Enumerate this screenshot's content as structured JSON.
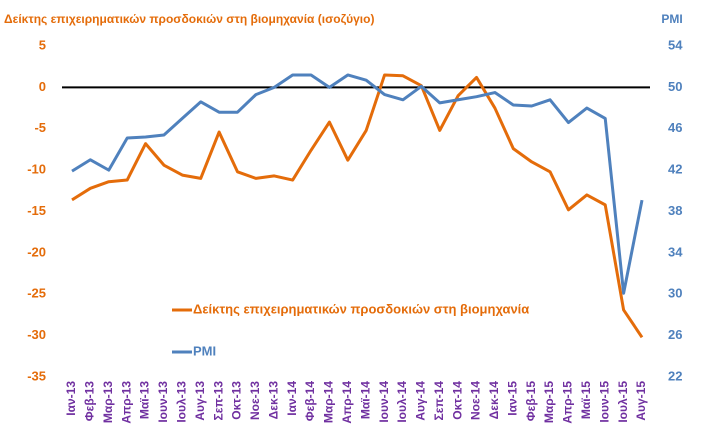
{
  "chart_data": {
    "type": "line",
    "y_title": "Δείκτης επιχειρηματικών προσδοκιών στη βιομηχανία (ισοζύγιο)",
    "y2_title": "PMI",
    "categories": [
      "Ιαν-13",
      "Φεβ-13",
      "Μαρ-13",
      "Απρ-13",
      "Μαϊ-13",
      "Ιουν-13",
      "Ιουλ-13",
      "Αυγ-13",
      "Σεπ-13",
      "Οκτ-13",
      "Νοε-13",
      "Δεκ-13",
      "Ιαν-14",
      "Φεβ-14",
      "Μαρ-14",
      "Απρ-14",
      "Μαϊ-14",
      "Ιουν-14",
      "Ιουλ-14",
      "Αυγ-14",
      "Σεπ-14",
      "Οκτ-14",
      "Νοε-14",
      "Δεκ-14",
      "Ιαν-15",
      "Φεβ-15",
      "Μαρ-15",
      "Απρ-15",
      "Μαϊ-15",
      "Ιουν-15",
      "Ιουλ-15",
      "Αυγ-15"
    ],
    "series": [
      {
        "name": "Δείκτης επιχειρηματικών προσδοκιών στη βιομηχανία",
        "color": "#e46c0a",
        "axis": "y",
        "values": [
          -13.6,
          -12.2,
          -11.4,
          -11.2,
          -6.8,
          -9.4,
          -10.6,
          -11,
          -5.4,
          -10.2,
          -11,
          -10.7,
          -11.2,
          -7.6,
          -4.2,
          -8.8,
          -5.2,
          1.5,
          1.4,
          0.2,
          -5.2,
          -1,
          1.2,
          -2.5,
          -7.4,
          -9,
          -10.2,
          -14.8,
          -13,
          -14.2,
          -26.9,
          -30.2
        ]
      },
      {
        "name": "PMI",
        "color": "#4f81bd",
        "axis": "y2",
        "values": [
          41.9,
          43,
          42,
          45.1,
          45.2,
          45.4,
          47,
          48.6,
          47.6,
          47.6,
          49.3,
          50,
          51.2,
          51.2,
          50,
          51.2,
          50.7,
          49.3,
          48.8,
          50.1,
          48.5,
          48.8,
          49.1,
          49.5,
          48.3,
          48.2,
          48.8,
          46.6,
          48,
          47,
          30.1,
          39.1
        ]
      }
    ],
    "ylim": [
      -35,
      5
    ],
    "yticks": [
      5,
      0,
      -5,
      -10,
      -15,
      -20,
      -25,
      -30,
      -35
    ],
    "y2lim": [
      22,
      54
    ],
    "y2ticks": [
      54,
      50,
      46,
      42,
      38,
      34,
      30,
      26,
      22
    ]
  }
}
